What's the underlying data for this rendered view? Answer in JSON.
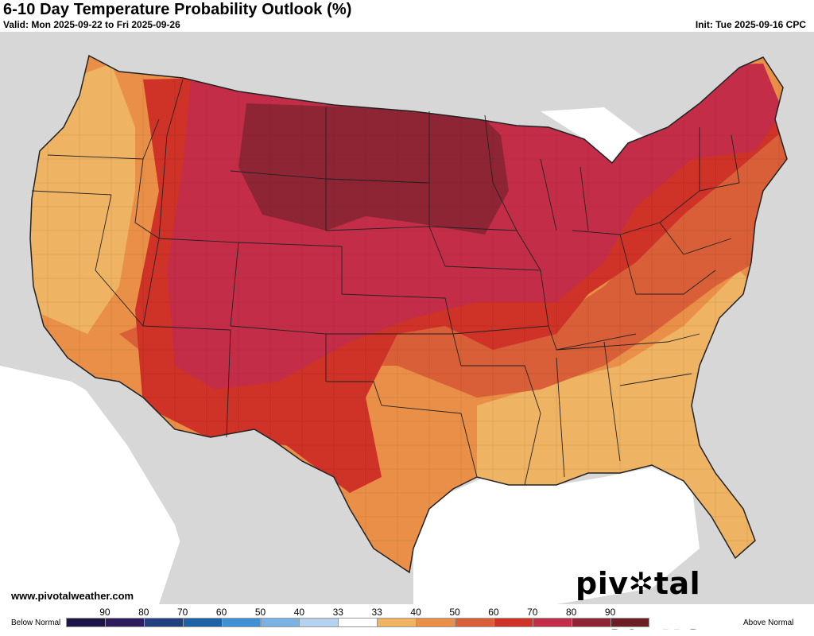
{
  "header": {
    "title": "6-10 Day Temperature Probability Outlook (%)",
    "valid": "Valid: Mon 2025-09-22 to Fri 2025-09-26",
    "init": "Init: Tue 2025-09-16 CPC"
  },
  "footer": {
    "site": "www.pivotalweather.com",
    "brand_left": "piv",
    "brand_right": "tal weather"
  },
  "legend": {
    "below_label": "Below Normal",
    "above_label": "Above Normal",
    "ticks": [
      "90",
      "80",
      "70",
      "60",
      "50",
      "40",
      "33",
      "33",
      "40",
      "50",
      "60",
      "70",
      "80",
      "90"
    ],
    "colors": [
      "#1b1446",
      "#2d1b5e",
      "#22407e",
      "#1c62a4",
      "#3f91d3",
      "#7ab3e3",
      "#b4d1ef",
      "#ffffff",
      "#efb463",
      "#e98f47",
      "#d85f38",
      "#cf3227",
      "#c42d48",
      "#8e2535",
      "#6b1f22"
    ]
  },
  "map_colors": {
    "land_outside": "#d7d7d7",
    "water": "#ffffff",
    "prob_40_50": "#efb463",
    "prob_50_60": "#e98f47",
    "prob_60_70": "#d85f38",
    "prob_70_80": "#cf3227",
    "prob_80_90": "#c42d48",
    "prob_90_plus": "#8e2535"
  }
}
